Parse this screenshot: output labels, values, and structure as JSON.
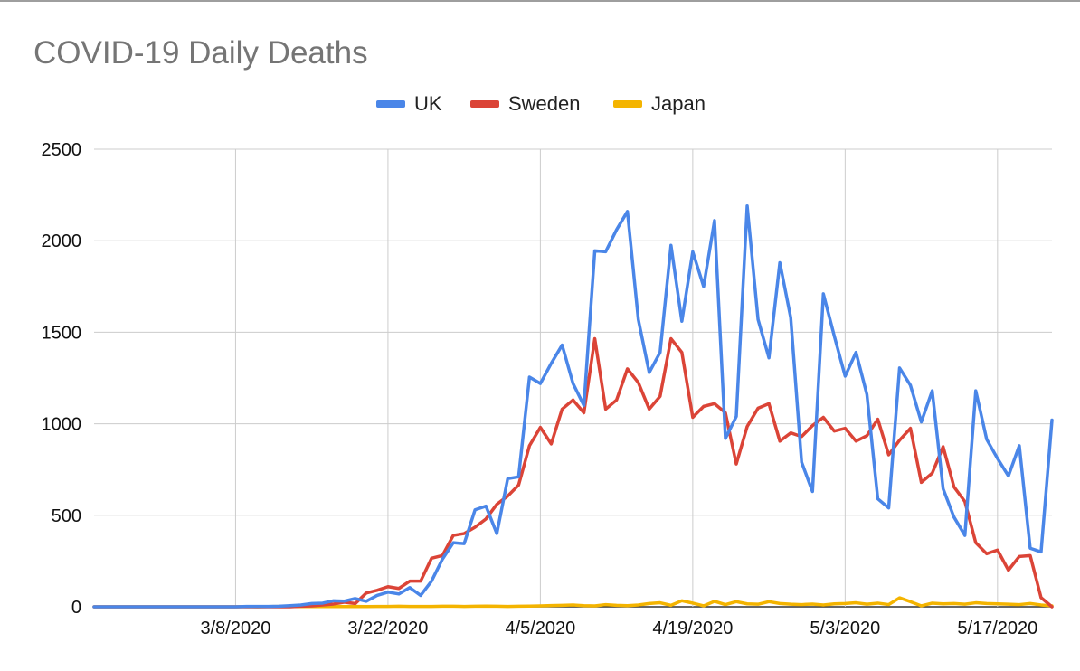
{
  "chart_data": {
    "type": "line",
    "title": "COVID-19 Daily Deaths",
    "xlabel": "",
    "ylabel": "",
    "legend_position": "top-center",
    "grid": true,
    "ylim": [
      0,
      2500
    ],
    "y_ticks": [
      0,
      500,
      1000,
      1500,
      2000,
      2500
    ],
    "x_ticks": [
      "3/8/2020",
      "3/22/2020",
      "4/5/2020",
      "4/19/2020",
      "5/3/2020",
      "5/17/2020"
    ],
    "series": [
      {
        "name": "UK",
        "color": "#4a86e8",
        "values": [
          0,
          0,
          0,
          0,
          0,
          0,
          0,
          0,
          0,
          0,
          0,
          0,
          0,
          0,
          2,
          2,
          2,
          3,
          6,
          10,
          18,
          20,
          33,
          31,
          45,
          30,
          62,
          80,
          70,
          105,
          62,
          140,
          260,
          350,
          345,
          530,
          550,
          400,
          700,
          710,
          1255,
          1220,
          1330,
          1430,
          1220,
          1100,
          1945,
          1940,
          2060,
          2160,
          1570,
          1280,
          1390,
          1975,
          1560,
          1940,
          1750,
          2110,
          920,
          1040,
          2190,
          1570,
          1360,
          1880,
          1580,
          790,
          630,
          1710,
          1480,
          1260,
          1390,
          1160,
          590,
          540,
          1305,
          1210,
          1010,
          1180,
          645,
          490,
          390,
          1180,
          915,
          810,
          715,
          880,
          320,
          300,
          1020
        ]
      },
      {
        "name": "Sweden",
        "color": "#db4437",
        "values": [
          0,
          0,
          0,
          0,
          0,
          0,
          0,
          0,
          0,
          0,
          0,
          0,
          0,
          0,
          0,
          0,
          0,
          0,
          0,
          3,
          5,
          10,
          15,
          25,
          18,
          75,
          90,
          110,
          100,
          140,
          140,
          265,
          280,
          390,
          400,
          435,
          480,
          560,
          605,
          665,
          880,
          980,
          890,
          1080,
          1130,
          1060,
          1465,
          1080,
          1130,
          1300,
          1225,
          1080,
          1150,
          1465,
          1390,
          1035,
          1095,
          1110,
          1060,
          780,
          985,
          1085,
          1110,
          905,
          950,
          930,
          990,
          1035,
          960,
          975,
          905,
          935,
          1025,
          830,
          910,
          975,
          680,
          730,
          875,
          655,
          575,
          350,
          290,
          310,
          200,
          275,
          280,
          50,
          0
        ]
      },
      {
        "name": "Japan",
        "color": "#f4b400",
        "values": [
          0,
          0,
          0,
          0,
          0,
          0,
          0,
          0,
          0,
          0,
          0,
          0,
          0,
          0,
          1,
          0,
          1,
          2,
          1,
          2,
          1,
          1,
          2,
          1,
          2,
          1,
          2,
          2,
          3,
          2,
          2,
          2,
          3,
          3,
          2,
          3,
          4,
          3,
          2,
          3,
          4,
          5,
          7,
          8,
          10,
          6,
          5,
          12,
          8,
          6,
          10,
          18,
          22,
          8,
          33,
          20,
          5,
          30,
          12,
          28,
          16,
          14,
          28,
          18,
          14,
          12,
          15,
          10,
          16,
          18,
          22,
          14,
          20,
          12,
          49,
          28,
          5,
          20,
          16,
          18,
          14,
          22,
          18,
          16,
          14,
          12,
          18,
          10,
          5
        ]
      }
    ]
  }
}
